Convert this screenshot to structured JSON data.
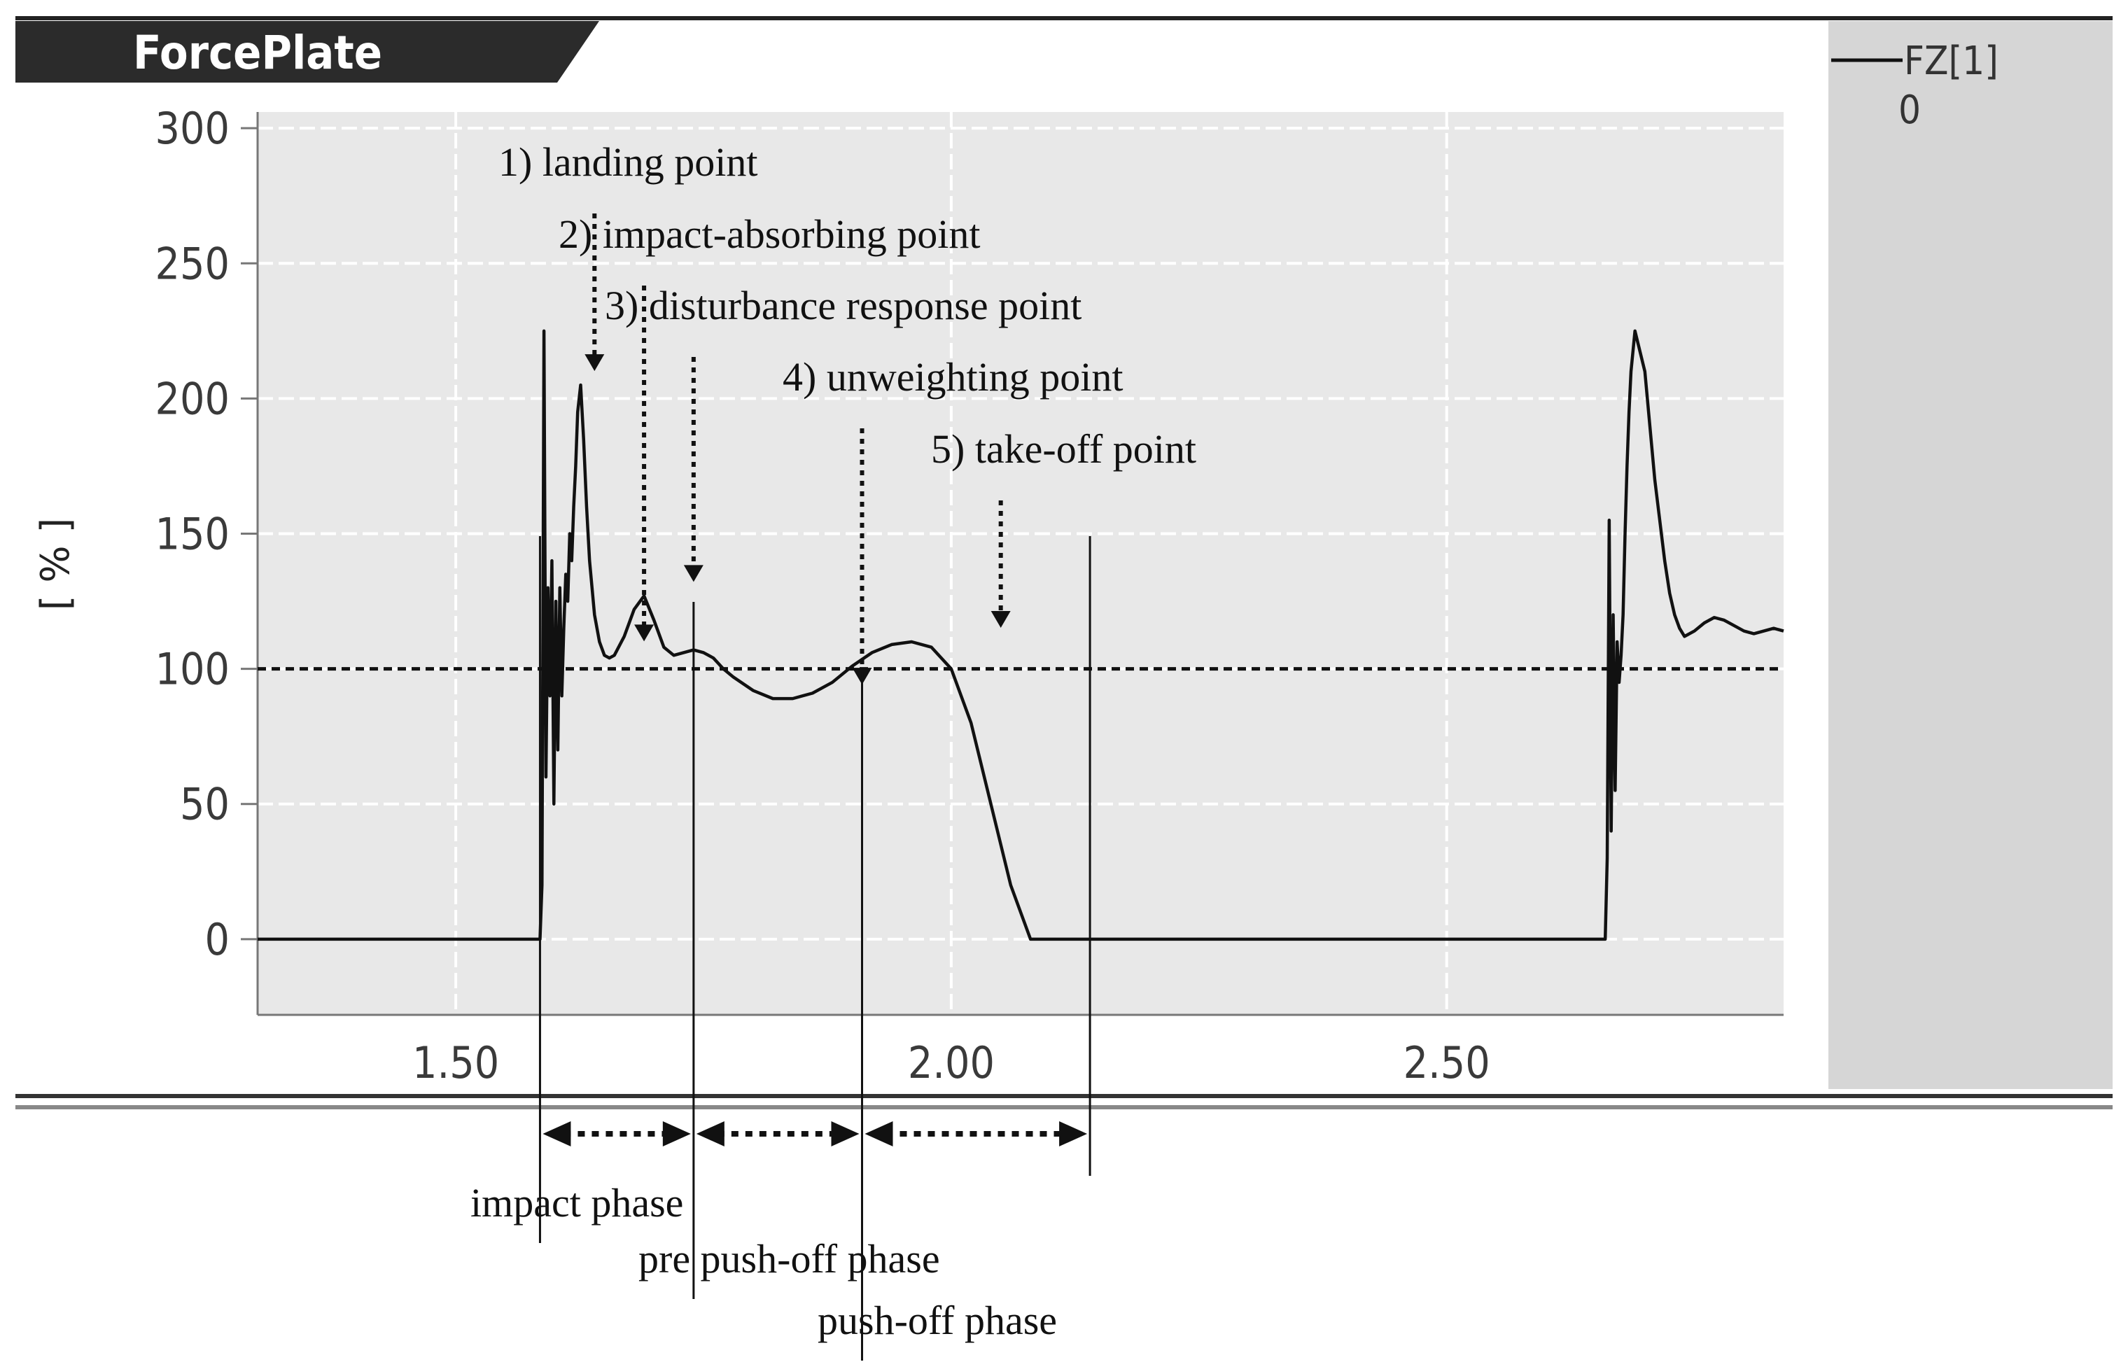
{
  "panel": {
    "title": "ForcePlate"
  },
  "legend": {
    "series_label": "FZ[1]",
    "series_value": "0"
  },
  "chart_data": {
    "type": "line",
    "title": "ForcePlate",
    "xlabel": "",
    "ylabel": "[ % ]",
    "xlim": [
      1.3,
      2.84
    ],
    "ylim": [
      -28,
      306
    ],
    "x_ticks": [
      1.5,
      2.0,
      2.5
    ],
    "x_tick_labels": [
      "1.50",
      "2.00",
      "2.50"
    ],
    "y_ticks": [
      0,
      50,
      100,
      150,
      200,
      250,
      300
    ],
    "y_tick_labels": [
      "0",
      "50",
      "100",
      "150",
      "200",
      "250",
      "300"
    ],
    "grid": true,
    "legend_position": "right panel",
    "reference_line": {
      "y": 100,
      "style": "dashed"
    },
    "series": [
      {
        "name": "FZ[1]",
        "x": [
          1.3,
          1.585,
          1.587,
          1.589,
          1.591,
          1.593,
          1.595,
          1.597,
          1.599,
          1.601,
          1.603,
          1.605,
          1.607,
          1.609,
          1.611,
          1.613,
          1.615,
          1.617,
          1.619,
          1.621,
          1.623,
          1.626,
          1.629,
          1.632,
          1.635,
          1.64,
          1.645,
          1.65,
          1.655,
          1.66,
          1.67,
          1.68,
          1.69,
          1.7,
          1.71,
          1.72,
          1.73,
          1.74,
          1.75,
          1.76,
          1.77,
          1.78,
          1.8,
          1.82,
          1.84,
          1.86,
          1.88,
          1.9,
          1.92,
          1.94,
          1.96,
          1.98,
          2.0,
          2.02,
          2.04,
          2.06,
          2.08,
          2.1,
          2.12,
          2.14,
          2.16,
          2.66,
          2.662,
          2.664,
          2.666,
          2.668,
          2.67,
          2.672,
          2.674,
          2.676,
          2.678,
          2.68,
          2.682,
          2.684,
          2.686,
          2.69,
          2.7,
          2.71,
          2.72,
          2.725,
          2.73,
          2.735,
          2.74,
          2.75,
          2.76,
          2.77,
          2.78,
          2.79,
          2.8,
          2.81,
          2.82,
          2.83,
          2.84
        ],
        "y": [
          0,
          0,
          20,
          225,
          60,
          130,
          90,
          140,
          50,
          125,
          70,
          130,
          90,
          115,
          135,
          125,
          150,
          140,
          160,
          175,
          195,
          205,
          185,
          160,
          140,
          120,
          110,
          105,
          104,
          105,
          112,
          122,
          127,
          118,
          108,
          105,
          106,
          107,
          106,
          104,
          100,
          97,
          92,
          89,
          89,
          91,
          95,
          101,
          106,
          109,
          110,
          108,
          100,
          80,
          50,
          20,
          0,
          0,
          0,
          0,
          0,
          0,
          30,
          155,
          40,
          120,
          55,
          110,
          95,
          105,
          120,
          150,
          175,
          195,
          210,
          225,
          210,
          170,
          140,
          128,
          120,
          115,
          112,
          114,
          117,
          119,
          118,
          116,
          114,
          113,
          114,
          115,
          114
        ]
      }
    ],
    "annotations": [
      {
        "label": "1) landing point",
        "x": 1.64,
        "y": 205
      },
      {
        "label": "2) impact-absorbing point",
        "x": 1.69,
        "y": 105
      },
      {
        "label": "3) disturbance response point",
        "x": 1.74,
        "y": 127
      },
      {
        "label": "4) unweighting point",
        "x": 1.91,
        "y": 89
      },
      {
        "label": "5) take-off point",
        "x": 2.05,
        "y": 110
      }
    ],
    "phases": [
      {
        "label": "impact phase",
        "x_start": 1.585,
        "x_end": 1.74
      },
      {
        "label": "pre push-off phase",
        "x_start": 1.74,
        "x_end": 1.91
      },
      {
        "label": "push-off phase",
        "x_start": 1.91,
        "x_end": 2.14
      }
    ]
  }
}
